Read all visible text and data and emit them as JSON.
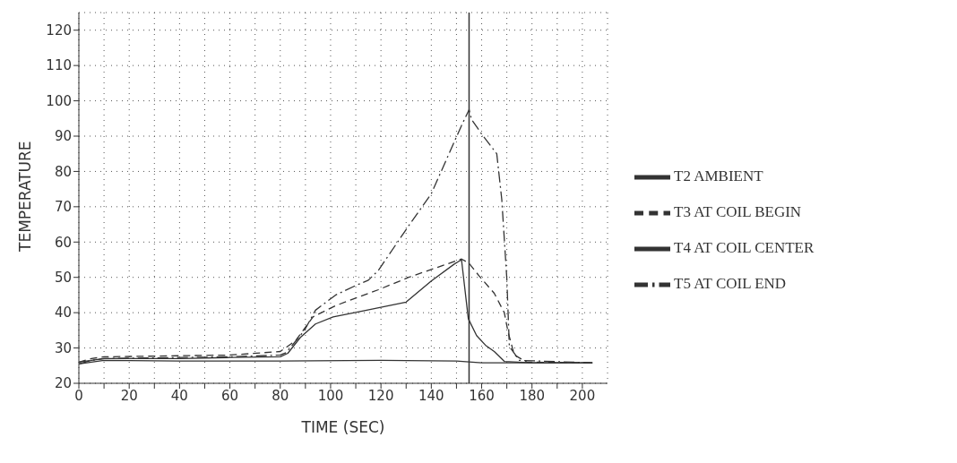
{
  "chart_data": {
    "type": "line",
    "xlabel": "TIME (SEC)",
    "ylabel": "TEMPERATURE",
    "xlim": [
      0,
      210
    ],
    "ylim": [
      20,
      125
    ],
    "xticks": [
      0,
      {
        "value": 10,
        "label": null
      },
      20,
      {
        "value": 30,
        "label": null
      },
      40,
      {
        "value": 50,
        "label": null
      },
      60,
      {
        "value": 70,
        "label": null
      },
      80,
      {
        "value": 90,
        "label": null
      },
      100,
      {
        "value": 110,
        "label": null
      },
      120,
      {
        "value": 130,
        "label": null
      },
      140,
      {
        "value": 150,
        "label": null
      },
      160,
      {
        "value": 170,
        "label": null
      },
      180,
      {
        "value": 190,
        "label": null
      },
      200
    ],
    "yticks": [
      20,
      30,
      40,
      50,
      60,
      70,
      80,
      90,
      100,
      110,
      120
    ],
    "grid": true,
    "legend": "right",
    "marker": "none",
    "ref_lines": [
      {
        "axis": "x",
        "value": 155,
        "color": "#333333",
        "line_style": "solid"
      }
    ],
    "series": [
      {
        "name": "T2 AMBIENT",
        "color": "#333333",
        "line_style": "solid",
        "x": [
          0,
          5,
          10,
          40,
          80,
          120,
          150,
          160,
          180,
          204
        ],
        "values": [
          25.5,
          26,
          26.5,
          26.3,
          26.3,
          26.5,
          26.3,
          25.8,
          25.8,
          25.8
        ]
      },
      {
        "name": "T3 AT COIL BEGIN",
        "color": "#333333",
        "line_style": "dashed",
        "x": [
          0,
          5,
          10,
          40,
          60,
          80,
          86,
          93,
          102,
          119,
          131,
          152,
          155,
          159,
          165,
          169,
          170.5,
          173,
          178,
          204
        ],
        "values": [
          26,
          27,
          27.5,
          27.8,
          28,
          29,
          32,
          38.8,
          42,
          46.5,
          50,
          55.2,
          54,
          50.4,
          45.5,
          40,
          34.5,
          28,
          26,
          25.8
        ]
      },
      {
        "name": "T4 AT COIL CENTER",
        "color": "#333333",
        "line_style": "solid",
        "x": [
          0,
          5,
          10,
          40,
          60,
          80,
          83,
          88,
          94,
          101,
          113,
          130,
          140,
          149,
          152,
          154.7,
          158,
          161.5,
          165,
          169,
          180,
          204
        ],
        "values": [
          25.5,
          26.5,
          27,
          27,
          27.3,
          27.5,
          28.5,
          33,
          36.8,
          38.8,
          40.5,
          43,
          49,
          53.7,
          55,
          38.3,
          33.5,
          30.8,
          29,
          26.2,
          25.8,
          25.8
        ]
      },
      {
        "name": "T5 AT COIL END",
        "color": "#333333",
        "line_style": "dashdot",
        "x": [
          0,
          5,
          10,
          40,
          60,
          80,
          82.4,
          89.6,
          94,
          102,
          110,
          115,
          119,
          131,
          140,
          152,
          155,
          156,
          160,
          166,
          168,
          170,
          171,
          175,
          204
        ],
        "values": [
          26,
          26.5,
          27,
          27.3,
          27.5,
          28,
          28.7,
          35,
          40.7,
          45,
          47.7,
          49.2,
          52,
          64.6,
          73.7,
          93,
          97.5,
          94.7,
          90.6,
          85,
          72,
          49.6,
          30.4,
          26.5,
          25.8
        ]
      }
    ]
  }
}
